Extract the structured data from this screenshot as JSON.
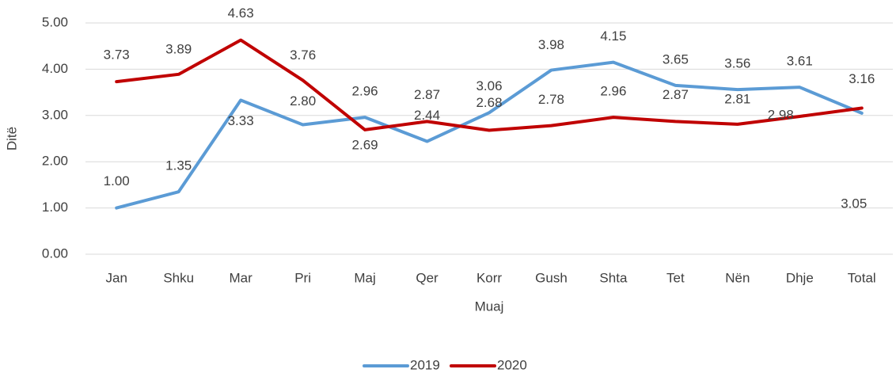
{
  "chart_data": {
    "type": "line",
    "xlabel": "Muaj",
    "ylabel": "Ditë",
    "categories": [
      "Jan",
      "Shku",
      "Mar",
      "Pri",
      "Maj",
      "Qer",
      "Korr",
      "Gush",
      "Shta",
      "Tet",
      "Nën",
      "Dhje",
      "Total"
    ],
    "series": [
      {
        "name": "2019",
        "color": "#5b9bd5",
        "values": [
          1.0,
          1.35,
          3.33,
          2.8,
          2.96,
          2.44,
          3.06,
          3.98,
          4.15,
          3.65,
          3.56,
          3.61,
          3.05
        ],
        "value_labels": [
          "1.00",
          "1.35",
          "3.33",
          "2.80",
          "2.96",
          "2.44",
          "3.06",
          "3.98",
          "4.15",
          "3.65",
          "3.56",
          "3.61",
          "3.05"
        ]
      },
      {
        "name": "2020",
        "color": "#c00000",
        "values": [
          3.73,
          3.89,
          4.63,
          3.76,
          2.69,
          2.87,
          2.68,
          2.78,
          2.96,
          2.87,
          2.81,
          2.98,
          3.16
        ],
        "value_labels": [
          "3.73",
          "3.89",
          "4.63",
          "3.76",
          "2.69",
          "2.87",
          "2.68",
          "2.78",
          "2.96",
          "2.87",
          "2.81",
          "2.98",
          "3.16"
        ]
      }
    ],
    "ylim": [
      0,
      5
    ],
    "yticks": [
      {
        "value": 0,
        "label": "0.00"
      },
      {
        "value": 1,
        "label": "1.00"
      },
      {
        "value": 2,
        "label": "2.00"
      },
      {
        "value": 3,
        "label": "3.00"
      },
      {
        "value": 4,
        "label": "4.00"
      },
      {
        "value": 5,
        "label": "5.00"
      }
    ],
    "grid": true,
    "legend": "bottom"
  }
}
